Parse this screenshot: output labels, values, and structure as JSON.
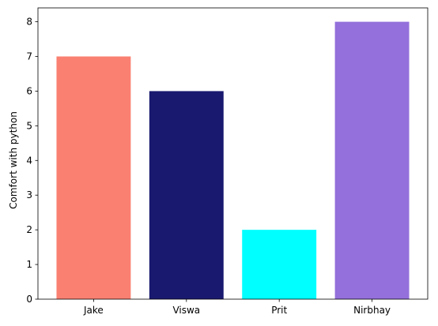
{
  "chart_data": {
    "type": "bar",
    "title": "",
    "xlabel": "",
    "ylabel": "Comfort with python",
    "categories": [
      "Jake",
      "Viswa",
      "Prit",
      "Nirbhay"
    ],
    "values": [
      7,
      6,
      2,
      8
    ],
    "colors": [
      "#fa8072",
      "#191970",
      "#00ffff",
      "#9370db"
    ],
    "ylim": [
      0,
      8.4
    ],
    "yticks": [
      0,
      1,
      2,
      3,
      4,
      5,
      6,
      7,
      8
    ],
    "grid": false,
    "legend": "none"
  }
}
